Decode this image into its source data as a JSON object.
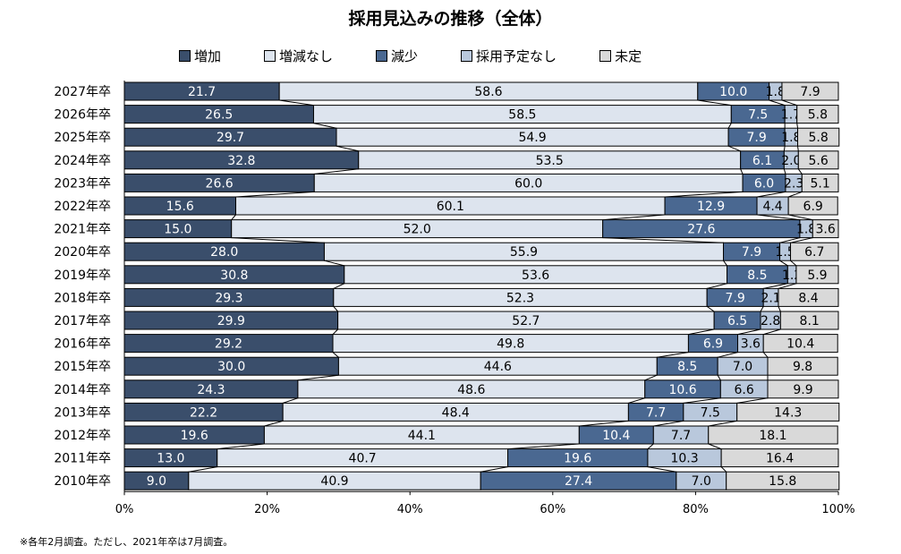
{
  "chart_data": {
    "type": "bar",
    "orientation": "horizontal",
    "stacked": "100%",
    "title": "採用見込みの推移（全体）",
    "categories": [
      "2027年卒",
      "2026年卒",
      "2025年卒",
      "2024年卒",
      "2023年卒",
      "2022年卒",
      "2021年卒",
      "2020年卒",
      "2019年卒",
      "2018年卒",
      "2017年卒",
      "2016年卒",
      "2015年卒",
      "2014年卒",
      "2013年卒",
      "2012年卒",
      "2011年卒",
      "2010年卒"
    ],
    "series": [
      {
        "name": "増加",
        "color": "#3a4e6b",
        "label_color": "#ffffff",
        "values": [
          21.7,
          26.5,
          29.7,
          32.8,
          26.6,
          15.6,
          15.0,
          28.0,
          30.8,
          29.3,
          29.9,
          29.2,
          30.0,
          24.3,
          22.2,
          19.6,
          13.0,
          9.0
        ]
      },
      {
        "name": "増減なし",
        "color": "#dde4ee",
        "label_color": "#000000",
        "values": [
          58.6,
          58.5,
          54.9,
          53.5,
          60.0,
          60.1,
          52.0,
          55.9,
          53.6,
          52.3,
          52.7,
          49.8,
          44.6,
          48.6,
          48.4,
          44.1,
          40.7,
          40.9
        ]
      },
      {
        "name": "減少",
        "color": "#4a6891",
        "label_color": "#ffffff",
        "values": [
          10.0,
          7.5,
          7.9,
          6.1,
          6.0,
          12.9,
          27.6,
          7.9,
          8.5,
          7.9,
          6.5,
          6.9,
          8.5,
          10.6,
          7.7,
          10.4,
          19.6,
          27.4
        ]
      },
      {
        "name": "採用予定なし",
        "color": "#b9c8dc",
        "label_color": "#000000",
        "values": [
          1.8,
          1.7,
          1.8,
          2.0,
          2.3,
          4.4,
          1.8,
          1.5,
          1.2,
          2.1,
          2.8,
          3.6,
          7.0,
          6.6,
          7.5,
          7.7,
          10.3,
          7.0
        ]
      },
      {
        "name": "未定",
        "color": "#d9d9d9",
        "label_color": "#000000",
        "values": [
          7.9,
          5.8,
          5.8,
          5.6,
          5.1,
          6.9,
          3.6,
          6.7,
          5.9,
          8.4,
          8.1,
          10.4,
          9.8,
          9.9,
          14.3,
          18.1,
          16.4,
          15.8
        ]
      }
    ],
    "xlim": [
      0,
      100
    ],
    "xticks": [
      "0%",
      "20%",
      "40%",
      "60%",
      "80%",
      "100%"
    ],
    "legend_position": "top",
    "grid": false,
    "series_lines": true
  },
  "note": "※各年2月調査。ただし、2021年卒は7月調査。"
}
